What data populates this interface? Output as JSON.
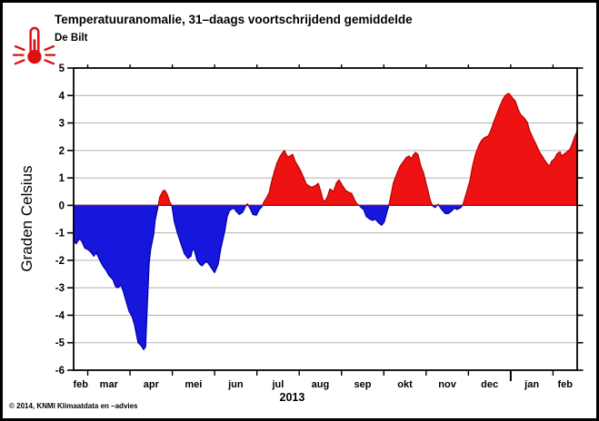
{
  "header": {
    "title": "Temperatuuranomalie, 31–daags voortschrijdend gemiddelde",
    "subtitle": "De Bilt"
  },
  "footer": {
    "copyright": "© 2014, KNMI Klimaatdata en –advies"
  },
  "chart_data": {
    "type": "area",
    "title": "Temperatuuranomalie, 31–daags voortschrijdend gemiddelde",
    "station": "De Bilt",
    "ylabel": "Graden Celsius",
    "unit": "graden Celsius",
    "ylim": [
      -6,
      5
    ],
    "yticks": [
      5,
      4,
      3,
      2,
      1,
      0,
      -1,
      -2,
      -3,
      -4,
      -5,
      -6
    ],
    "grid": "horizontal",
    "x_axis": {
      "year_label": "2013",
      "year_label_t": 0.434,
      "month_labels": [
        "feb",
        "mar",
        "apr",
        "mei",
        "jun",
        "jul",
        "aug",
        "sep",
        "okt",
        "nov",
        "dec",
        "jan",
        "feb"
      ],
      "month_label_t": [
        0.014,
        0.07,
        0.154,
        0.238,
        0.322,
        0.406,
        0.49,
        0.574,
        0.658,
        0.742,
        0.826,
        0.91,
        0.976
      ],
      "boundary_ticks_t": [
        0.028,
        0.112,
        0.196,
        0.28,
        0.364,
        0.448,
        0.532,
        0.616,
        0.7,
        0.784,
        0.868,
        0.952
      ],
      "year_tick_index": 10
    },
    "colors": {
      "positive_fill": "#ee1312",
      "positive_edge": "#b80000",
      "negative_fill": "#1616dd",
      "negative_edge": "#0000a8",
      "grid": "#b0b0b0",
      "frame": "#000000"
    },
    "series": {
      "name": "temperature-anomaly",
      "points": [
        [
          0.0,
          -1.3
        ],
        [
          0.005,
          -1.4
        ],
        [
          0.011,
          -1.22
        ],
        [
          0.016,
          -1.3
        ],
        [
          0.022,
          -1.55
        ],
        [
          0.029,
          -1.62
        ],
        [
          0.034,
          -1.7
        ],
        [
          0.04,
          -1.85
        ],
        [
          0.045,
          -1.72
        ],
        [
          0.052,
          -2.0
        ],
        [
          0.058,
          -2.2
        ],
        [
          0.065,
          -2.38
        ],
        [
          0.07,
          -2.55
        ],
        [
          0.078,
          -2.7
        ],
        [
          0.083,
          -2.95
        ],
        [
          0.088,
          -3.0
        ],
        [
          0.094,
          -2.9
        ],
        [
          0.099,
          -3.15
        ],
        [
          0.105,
          -3.55
        ],
        [
          0.11,
          -3.85
        ],
        [
          0.116,
          -4.05
        ],
        [
          0.121,
          -4.35
        ],
        [
          0.128,
          -5.0
        ],
        [
          0.134,
          -5.1
        ],
        [
          0.139,
          -5.25
        ],
        [
          0.143,
          -5.15
        ],
        [
          0.146,
          -3.8
        ],
        [
          0.15,
          -2.1
        ],
        [
          0.153,
          -1.6
        ],
        [
          0.159,
          -1.05
        ],
        [
          0.162,
          -0.55
        ],
        [
          0.168,
          0.0
        ],
        [
          0.171,
          0.3
        ],
        [
          0.177,
          0.52
        ],
        [
          0.181,
          0.55
        ],
        [
          0.186,
          0.4
        ],
        [
          0.191,
          0.12
        ],
        [
          0.195,
          0.0
        ],
        [
          0.2,
          -0.6
        ],
        [
          0.206,
          -1.0
        ],
        [
          0.215,
          -1.5
        ],
        [
          0.22,
          -1.76
        ],
        [
          0.227,
          -1.93
        ],
        [
          0.233,
          -1.85
        ],
        [
          0.236,
          -1.6
        ],
        [
          0.24,
          -1.65
        ],
        [
          0.245,
          -2.0
        ],
        [
          0.251,
          -2.15
        ],
        [
          0.255,
          -2.2
        ],
        [
          0.26,
          -2.1
        ],
        [
          0.265,
          -2.05
        ],
        [
          0.273,
          -2.26
        ],
        [
          0.28,
          -2.45
        ],
        [
          0.287,
          -2.15
        ],
        [
          0.292,
          -1.6
        ],
        [
          0.3,
          -0.95
        ],
        [
          0.305,
          -0.4
        ],
        [
          0.31,
          -0.18
        ],
        [
          0.318,
          -0.1
        ],
        [
          0.323,
          -0.22
        ],
        [
          0.329,
          -0.33
        ],
        [
          0.336,
          -0.25
        ],
        [
          0.341,
          -0.05
        ],
        [
          0.345,
          0.06
        ],
        [
          0.35,
          -0.1
        ],
        [
          0.356,
          -0.33
        ],
        [
          0.363,
          -0.36
        ],
        [
          0.368,
          -0.17
        ],
        [
          0.374,
          -0.05
        ],
        [
          0.377,
          0.1
        ],
        [
          0.383,
          0.28
        ],
        [
          0.388,
          0.45
        ],
        [
          0.393,
          0.85
        ],
        [
          0.399,
          1.25
        ],
        [
          0.404,
          1.55
        ],
        [
          0.41,
          1.78
        ],
        [
          0.415,
          1.92
        ],
        [
          0.419,
          2.0
        ],
        [
          0.422,
          1.86
        ],
        [
          0.426,
          1.76
        ],
        [
          0.431,
          1.82
        ],
        [
          0.435,
          1.86
        ],
        [
          0.44,
          1.6
        ],
        [
          0.446,
          1.42
        ],
        [
          0.451,
          1.25
        ],
        [
          0.457,
          1.0
        ],
        [
          0.462,
          0.78
        ],
        [
          0.467,
          0.72
        ],
        [
          0.473,
          0.66
        ],
        [
          0.48,
          0.72
        ],
        [
          0.486,
          0.8
        ],
        [
          0.491,
          0.5
        ],
        [
          0.496,
          0.15
        ],
        [
          0.5,
          0.18
        ],
        [
          0.504,
          0.32
        ],
        [
          0.509,
          0.6
        ],
        [
          0.513,
          0.55
        ],
        [
          0.516,
          0.5
        ],
        [
          0.522,
          0.82
        ],
        [
          0.527,
          0.93
        ],
        [
          0.534,
          0.72
        ],
        [
          0.54,
          0.55
        ],
        [
          0.545,
          0.49
        ],
        [
          0.552,
          0.44
        ],
        [
          0.558,
          0.2
        ],
        [
          0.563,
          0.05
        ],
        [
          0.567,
          0.0
        ],
        [
          0.572,
          -0.1
        ],
        [
          0.576,
          -0.15
        ],
        [
          0.581,
          -0.4
        ],
        [
          0.588,
          -0.5
        ],
        [
          0.594,
          -0.55
        ],
        [
          0.599,
          -0.5
        ],
        [
          0.607,
          -0.66
        ],
        [
          0.612,
          -0.72
        ],
        [
          0.617,
          -0.6
        ],
        [
          0.623,
          -0.2
        ],
        [
          0.626,
          0.0
        ],
        [
          0.63,
          0.35
        ],
        [
          0.635,
          0.82
        ],
        [
          0.643,
          1.2
        ],
        [
          0.648,
          1.42
        ],
        [
          0.655,
          1.6
        ],
        [
          0.661,
          1.75
        ],
        [
          0.666,
          1.8
        ],
        [
          0.67,
          1.7
        ],
        [
          0.675,
          1.85
        ],
        [
          0.679,
          1.93
        ],
        [
          0.684,
          1.85
        ],
        [
          0.69,
          1.4
        ],
        [
          0.695,
          1.18
        ],
        [
          0.702,
          0.66
        ],
        [
          0.708,
          0.2
        ],
        [
          0.713,
          -0.02
        ],
        [
          0.718,
          -0.08
        ],
        [
          0.724,
          0.05
        ],
        [
          0.727,
          -0.05
        ],
        [
          0.733,
          -0.2
        ],
        [
          0.738,
          -0.3
        ],
        [
          0.744,
          -0.3
        ],
        [
          0.751,
          -0.2
        ],
        [
          0.756,
          -0.1
        ],
        [
          0.762,
          -0.15
        ],
        [
          0.769,
          -0.08
        ],
        [
          0.773,
          0.02
        ],
        [
          0.78,
          0.45
        ],
        [
          0.787,
          0.9
        ],
        [
          0.792,
          1.42
        ],
        [
          0.798,
          1.86
        ],
        [
          0.805,
          2.2
        ],
        [
          0.81,
          2.36
        ],
        [
          0.816,
          2.47
        ],
        [
          0.823,
          2.52
        ],
        [
          0.828,
          2.7
        ],
        [
          0.834,
          3.02
        ],
        [
          0.841,
          3.35
        ],
        [
          0.846,
          3.6
        ],
        [
          0.852,
          3.84
        ],
        [
          0.857,
          4.0
        ],
        [
          0.863,
          4.08
        ],
        [
          0.866,
          4.05
        ],
        [
          0.872,
          3.9
        ],
        [
          0.877,
          3.8
        ],
        [
          0.883,
          3.48
        ],
        [
          0.888,
          3.3
        ],
        [
          0.895,
          3.18
        ],
        [
          0.901,
          3.02
        ],
        [
          0.906,
          2.7
        ],
        [
          0.913,
          2.42
        ],
        [
          0.919,
          2.2
        ],
        [
          0.924,
          1.98
        ],
        [
          0.931,
          1.78
        ],
        [
          0.937,
          1.6
        ],
        [
          0.942,
          1.48
        ],
        [
          0.946,
          1.45
        ],
        [
          0.949,
          1.6
        ],
        [
          0.955,
          1.7
        ],
        [
          0.96,
          1.88
        ],
        [
          0.966,
          1.95
        ],
        [
          0.969,
          1.8
        ],
        [
          0.973,
          1.86
        ],
        [
          0.978,
          1.92
        ],
        [
          0.986,
          2.05
        ],
        [
          0.991,
          2.28
        ],
        [
          0.995,
          2.5
        ],
        [
          1.0,
          2.7
        ]
      ]
    }
  }
}
